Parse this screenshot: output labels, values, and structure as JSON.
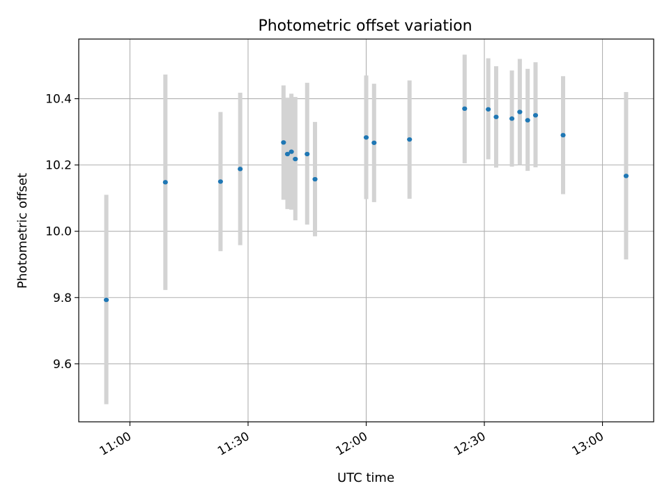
{
  "chart_data": {
    "type": "scatter",
    "title": "Photometric offset variation",
    "xlabel": "UTC time",
    "ylabel": "Photometric offset",
    "x_axis": "time",
    "xlim": [
      "10:47",
      "13:13"
    ],
    "ylim": [
      9.425,
      10.58
    ],
    "x_ticks": [
      "11:00",
      "11:30",
      "12:00",
      "12:30",
      "13:00"
    ],
    "y_ticks": [
      9.6,
      9.8,
      10.0,
      10.2,
      10.4
    ],
    "grid": true,
    "colors": {
      "point": "#1f77b4",
      "errorbar": "#d3d3d3",
      "grid": "#b0b0b0"
    },
    "points": [
      {
        "x": "10:54",
        "y": 9.793,
        "ylow": 9.478,
        "yhigh": 10.11
      },
      {
        "x": "11:09",
        "y": 10.148,
        "ylow": 9.823,
        "yhigh": 10.473
      },
      {
        "x": "11:23",
        "y": 10.15,
        "ylow": 9.94,
        "yhigh": 10.36
      },
      {
        "x": "11:28",
        "y": 10.188,
        "ylow": 9.958,
        "yhigh": 10.418
      },
      {
        "x": "11:39",
        "y": 10.268,
        "ylow": 10.095,
        "yhigh": 10.44
      },
      {
        "x": "11:40",
        "y": 10.233,
        "ylow": 10.067,
        "yhigh": 10.403
      },
      {
        "x": "11:41",
        "y": 10.24,
        "ylow": 10.065,
        "yhigh": 10.415
      },
      {
        "x": "11:42",
        "y": 10.218,
        "ylow": 10.033,
        "yhigh": 10.405
      },
      {
        "x": "11:45",
        "y": 10.233,
        "ylow": 10.02,
        "yhigh": 10.448
      },
      {
        "x": "11:47",
        "y": 10.157,
        "ylow": 9.985,
        "yhigh": 10.33
      },
      {
        "x": "12:00",
        "y": 10.283,
        "ylow": 10.097,
        "yhigh": 10.47
      },
      {
        "x": "12:02",
        "y": 10.267,
        "ylow": 10.088,
        "yhigh": 10.445
      },
      {
        "x": "12:11",
        "y": 10.277,
        "ylow": 10.098,
        "yhigh": 10.455
      },
      {
        "x": "12:25",
        "y": 10.37,
        "ylow": 10.205,
        "yhigh": 10.533
      },
      {
        "x": "12:31",
        "y": 10.368,
        "ylow": 10.217,
        "yhigh": 10.522
      },
      {
        "x": "12:33",
        "y": 10.345,
        "ylow": 10.192,
        "yhigh": 10.498
      },
      {
        "x": "12:37",
        "y": 10.34,
        "ylow": 10.195,
        "yhigh": 10.485
      },
      {
        "x": "12:39",
        "y": 10.36,
        "ylow": 10.2,
        "yhigh": 10.52
      },
      {
        "x": "12:41",
        "y": 10.335,
        "ylow": 10.182,
        "yhigh": 10.49
      },
      {
        "x": "12:43",
        "y": 10.35,
        "ylow": 10.193,
        "yhigh": 10.51
      },
      {
        "x": "12:50",
        "y": 10.29,
        "ylow": 10.112,
        "yhigh": 10.468
      },
      {
        "x": "13:06",
        "y": 10.167,
        "ylow": 9.915,
        "yhigh": 10.42
      }
    ]
  }
}
